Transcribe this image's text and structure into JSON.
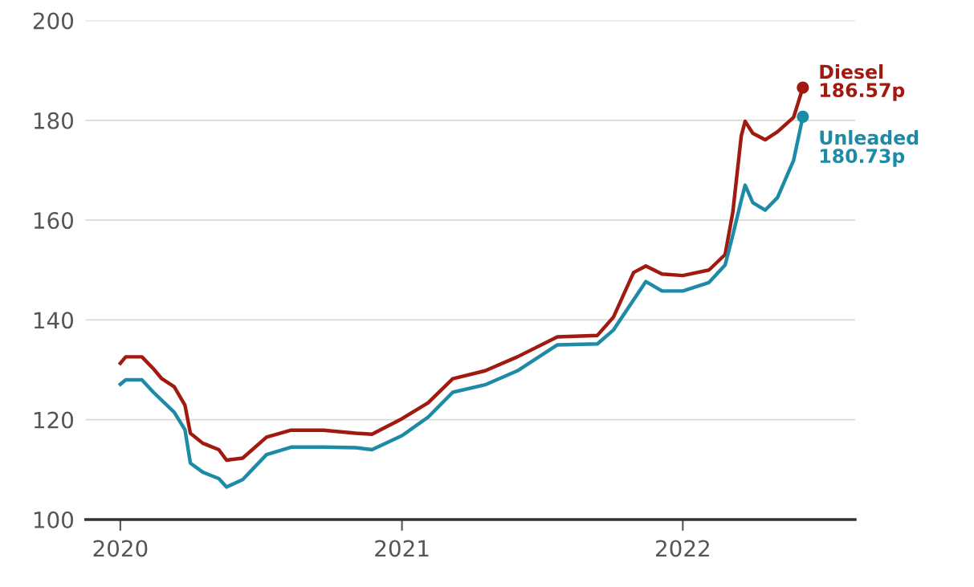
{
  "chart_data": {
    "type": "line",
    "ylim": [
      100,
      200
    ],
    "yticks": [
      100,
      120,
      140,
      160,
      180,
      200
    ],
    "xlim": [
      "2019-11-17",
      "2022-08-13"
    ],
    "xticks": [
      {
        "value": "2020-01-01",
        "label": "2020"
      },
      {
        "value": "2021-01-01",
        "label": "2021"
      },
      {
        "value": "2022-01-01",
        "label": "2022"
      }
    ],
    "grid": "y",
    "legend": false,
    "marker": "none",
    "line_style": "solid",
    "series": [
      {
        "name": "Diesel",
        "color": "#a01a10",
        "x": [
          "2020-01-01",
          "2020-01-08",
          "2020-01-29",
          "2020-02-13",
          "2020-02-24",
          "2020-03-11",
          "2020-03-25",
          "2020-04-01",
          "2020-04-17",
          "2020-05-08",
          "2020-05-18",
          "2020-06-08",
          "2020-07-09",
          "2020-08-10",
          "2020-09-21",
          "2020-11-02",
          "2020-11-23",
          "2021-01-01",
          "2021-02-04",
          "2021-03-08",
          "2021-04-19",
          "2021-05-31",
          "2021-07-22",
          "2021-09-12",
          "2021-10-03",
          "2021-10-29",
          "2021-11-14",
          "2021-12-05",
          "2022-01-01",
          "2022-02-04",
          "2022-02-25",
          "2022-03-07",
          "2022-03-18",
          "2022-03-23",
          "2022-04-02",
          "2022-04-18",
          "2022-05-04",
          "2022-05-25",
          "2022-06-06"
        ],
        "values": [
          131.3,
          132.6,
          132.6,
          130.2,
          128.2,
          126.6,
          122.9,
          117.3,
          115.3,
          114.0,
          111.9,
          112.3,
          116.5,
          117.9,
          117.9,
          117.3,
          117.1,
          120.2,
          123.4,
          128.2,
          129.8,
          132.6,
          136.6,
          136.9,
          140.6,
          149.5,
          150.8,
          149.2,
          148.9,
          150.0,
          153.1,
          161.6,
          176.9,
          179.8,
          177.4,
          176.1,
          177.7,
          180.6,
          186.57
        ],
        "value_labels": [
          null,
          null,
          null,
          null,
          null,
          null,
          null,
          null,
          null,
          null,
          null,
          null,
          null,
          null,
          null,
          null,
          null,
          null,
          null,
          null,
          null,
          null,
          null,
          null,
          null,
          null,
          null,
          null,
          null,
          null,
          null,
          null,
          null,
          null,
          null,
          null,
          null,
          null,
          "186.57p"
        ]
      },
      {
        "name": "Unleaded",
        "color": "#1d8aa6",
        "x": [
          "2020-01-01",
          "2020-01-08",
          "2020-01-29",
          "2020-02-13",
          "2020-03-11",
          "2020-03-25",
          "2020-04-01",
          "2020-04-17",
          "2020-05-08",
          "2020-05-18",
          "2020-06-08",
          "2020-07-09",
          "2020-08-10",
          "2020-09-21",
          "2020-11-02",
          "2020-11-23",
          "2021-01-01",
          "2021-02-04",
          "2021-03-08",
          "2021-04-19",
          "2021-05-31",
          "2021-07-22",
          "2021-09-12",
          "2021-10-03",
          "2021-11-14",
          "2021-12-05",
          "2022-01-01",
          "2022-02-04",
          "2022-02-25",
          "2022-03-07",
          "2022-03-18",
          "2022-03-23",
          "2022-04-02",
          "2022-04-18",
          "2022-05-04",
          "2022-05-25",
          "2022-06-06"
        ],
        "values": [
          127.1,
          128.0,
          128.0,
          125.5,
          121.5,
          118.0,
          111.3,
          109.5,
          108.2,
          106.5,
          108.0,
          113.0,
          114.5,
          114.5,
          114.4,
          114.0,
          116.8,
          120.5,
          125.5,
          127.0,
          129.8,
          135.0,
          135.2,
          138.0,
          147.7,
          145.8,
          145.8,
          147.5,
          151.0,
          157.0,
          164.0,
          167.0,
          163.5,
          162.0,
          164.5,
          172.0,
          180.73
        ],
        "value_labels": [
          null,
          null,
          null,
          null,
          null,
          null,
          null,
          null,
          null,
          null,
          null,
          null,
          null,
          null,
          null,
          null,
          null,
          null,
          null,
          null,
          null,
          null,
          null,
          null,
          null,
          null,
          null,
          null,
          null,
          null,
          null,
          null,
          null,
          null,
          null,
          null,
          "180.73p"
        ]
      }
    ]
  }
}
